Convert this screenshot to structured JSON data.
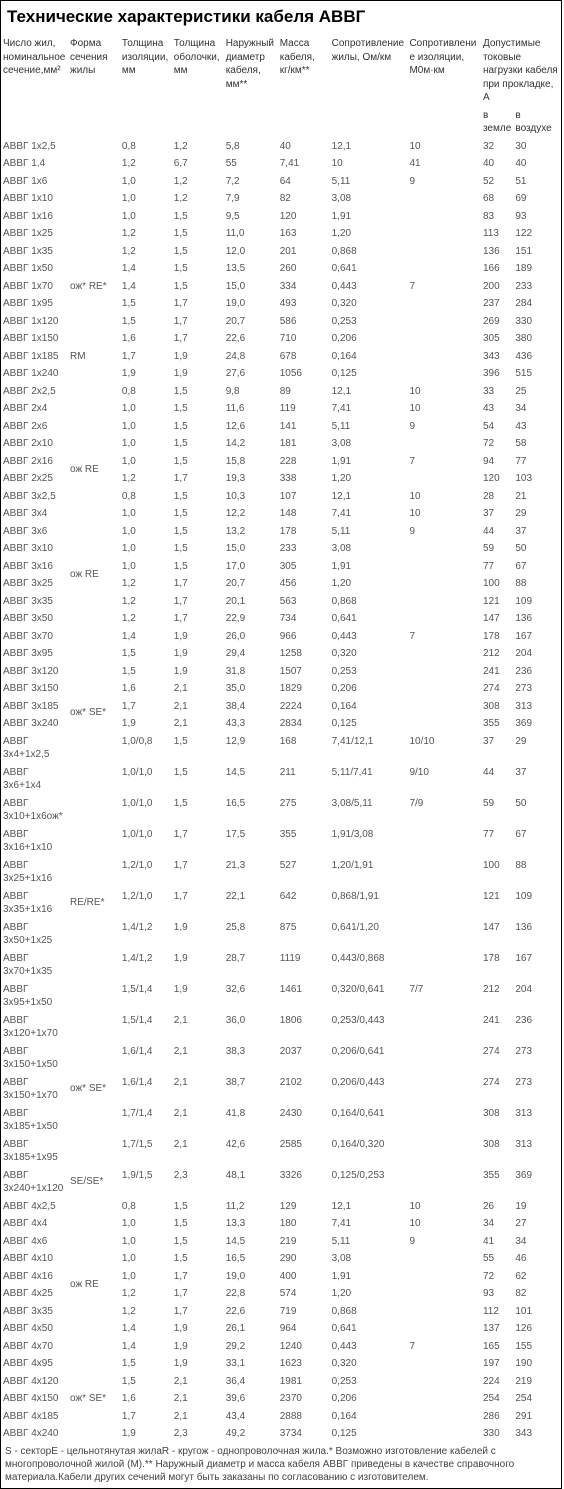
{
  "title": "Технические характеристики кабеля АВВГ",
  "headers": [
    "Число жил, номинальное сечение,мм²",
    "Форма сечения жилы",
    "Толщина изоляции, мм",
    "Толщина оболочки, мм",
    "Наружный диаметр кабеля, мм**",
    "Масса кабеля, кг/км**",
    "Сопротивление жилы, Ом/км",
    "Сопротивление изоляции, М0м·км"
  ],
  "header_load": "Допустимые токовые нагрузки кабеля при прокладке, А",
  "header_sub_ground": "в земле",
  "header_sub_air": "в воздухе",
  "shape_groups": [
    {
      "start": 5,
      "span": 7,
      "label": "ож* RE*"
    },
    {
      "start": 12,
      "span": 1,
      "label": "RM"
    },
    {
      "start": 17,
      "span": 4,
      "label": "ож RE"
    },
    {
      "start": 23,
      "span": 4,
      "label": "ож RE"
    },
    {
      "start": 30,
      "span": 5,
      "label": "ож* SE*"
    },
    {
      "start": 37,
      "span": 5,
      "label": "RE/RE*"
    },
    {
      "start": 43,
      "span": 5,
      "label": "ож* SE*"
    },
    {
      "start": 48,
      "span": 1,
      "label": "SE/SE*"
    },
    {
      "start": 52,
      "span": 4,
      "label": "ож RE"
    },
    {
      "start": 58,
      "span": 5,
      "label": "ож* SE*"
    }
  ],
  "rows": [
    [
      "АВВГ 1х2,5",
      "0,8",
      "1,2",
      "5,8",
      "40",
      "12,1",
      "10",
      "32",
      "30"
    ],
    [
      "АВВГ 1,4",
      "1,2",
      "6,7",
      "55",
      "7,41",
      "10",
      "41",
      "40",
      "40"
    ],
    [
      "АВВГ 1х6",
      "1,0",
      "1,2",
      "7,2",
      "64",
      "5,11",
      "9",
      "52",
      "51"
    ],
    [
      "АВВГ 1х10",
      "1,0",
      "1,2",
      "7,9",
      "82",
      "3,08",
      "",
      "68",
      "69"
    ],
    [
      "АВВГ 1х16",
      "1,0",
      "1,5",
      "9,5",
      "120",
      "1,91",
      "",
      "83",
      "93"
    ],
    [
      "АВВГ 1х25",
      "1,2",
      "1,5",
      "11,0",
      "163",
      "1,20",
      "",
      "113",
      "122"
    ],
    [
      "АВВГ 1х35",
      "1,2",
      "1,5",
      "12,0",
      "201",
      "0,868",
      "",
      "136",
      "151"
    ],
    [
      "АВВГ 1х50",
      "1,4",
      "1,5",
      "13,5",
      "260",
      "0,641",
      "",
      "166",
      "189"
    ],
    [
      "АВВГ 1х70",
      "1,4",
      "1,5",
      "15,0",
      "334",
      "0,443",
      "7",
      "200",
      "233"
    ],
    [
      "АВВГ 1х95",
      "1,5",
      "1,7",
      "19,0",
      "493",
      "0,320",
      "",
      "237",
      "284"
    ],
    [
      "АВВГ 1х120",
      "1,5",
      "1,7",
      "20,7",
      "586",
      "0,253",
      "",
      "269",
      "330"
    ],
    [
      "АВВГ 1х150",
      "1,6",
      "1,7",
      "22,6",
      "710",
      "0,206",
      "",
      "305",
      "380"
    ],
    [
      "АВВГ 1х185",
      "1,7",
      "1,9",
      "24,8",
      "678",
      "0,164",
      "",
      "343",
      "436"
    ],
    [
      "АВВГ 1х240",
      "1,9",
      "1,9",
      "27,6",
      "1056",
      "0,125",
      "",
      "396",
      "515"
    ],
    [
      "АВВГ 2х2,5",
      "0,8",
      "1,5",
      "9,8",
      "89",
      "12,1",
      "10",
      "33",
      "25"
    ],
    [
      "АВВГ 2х4",
      "1,0",
      "1,5",
      "11,6",
      "119",
      "7,41",
      "10",
      "43",
      "34"
    ],
    [
      "АВВГ 2х6",
      "1,0",
      "1,5",
      "12,6",
      "141",
      "5,11",
      "9",
      "54",
      "43"
    ],
    [
      "АВВГ 2х10",
      "1,0",
      "1,5",
      "14,2",
      "181",
      "3,08",
      "",
      "72",
      "58"
    ],
    [
      "АВВГ 2х16",
      "1,0",
      "1,5",
      "15,8",
      "228",
      "1,91",
      "7",
      "94",
      "77"
    ],
    [
      "АВВГ 2х25",
      "1,2",
      "1,7",
      "19,3",
      "338",
      "1,20",
      "",
      "120",
      "103"
    ],
    [
      "АВВГ 3х2,5",
      "0,8",
      "1,5",
      "10,3",
      "107",
      "12,1",
      "10",
      "28",
      "21"
    ],
    [
      "АВВГ 3х4",
      "1,0",
      "1,5",
      "12,2",
      "148",
      "7,41",
      "10",
      "37",
      "29"
    ],
    [
      "АВВГ 3х6",
      "1,0",
      "1,5",
      "13,2",
      "178",
      "5,11",
      "9",
      "44",
      "37"
    ],
    [
      "АВВГ 3х10",
      "1,0",
      "1,5",
      "15,0",
      "233",
      "3,08",
      "",
      "59",
      "50"
    ],
    [
      "АВВГ 3х16",
      "1,0",
      "1,5",
      "17,0",
      "305",
      "1,91",
      "",
      "77",
      "67"
    ],
    [
      "АВВГ 3х25",
      "1,2",
      "1,7",
      "20,7",
      "456",
      "1,20",
      "",
      "100",
      "88"
    ],
    [
      "АВВГ 3х35",
      "1,2",
      "1,7",
      "20,1",
      "563",
      "0,868",
      "",
      "121",
      "109"
    ],
    [
      "АВВГ 3х50",
      "1,2",
      "1,7",
      "22,9",
      "734",
      "0,641",
      "",
      "147",
      "136"
    ],
    [
      "АВВГ 3х70",
      "1,4",
      "1,9",
      "26,0",
      "966",
      "0,443",
      "7",
      "178",
      "167"
    ],
    [
      "АВВГ 3х95",
      "1,5",
      "1,9",
      "29,4",
      "1258",
      "0,320",
      "",
      "212",
      "204"
    ],
    [
      "АВВГ 3х120",
      "1,5",
      "1,9",
      "31,8",
      "1507",
      "0,253",
      "",
      "241",
      "236"
    ],
    [
      "АВВГ 3х150",
      "1,6",
      "2,1",
      "35,0",
      "1829",
      "0,206",
      "",
      "274",
      "273"
    ],
    [
      "АВВГ 3х185",
      "1,7",
      "2,1",
      "38,4",
      "2224",
      "0,164",
      "",
      "308",
      "313"
    ],
    [
      "АВВГ 3х240",
      "1,9",
      "2,1",
      "43,3",
      "2834",
      "0,125",
      "",
      "355",
      "369"
    ],
    [
      "АВВГ 3х4+1х2,5",
      "1,0/0,8",
      "1,5",
      "12,9",
      "168",
      "7,41/12,1",
      "10/10",
      "37",
      "29"
    ],
    [
      "АВВГ 3х6+1х4",
      "1,0/1,0",
      "1,5",
      "14,5",
      "211",
      "5,11/7,41",
      "9/10",
      "44",
      "37"
    ],
    [
      "АВВГ 3х10+1х6ож*",
      "1,0/1,0",
      "1,5",
      "16,5",
      "275",
      "3,08/5,11",
      "7/9",
      "59",
      "50"
    ],
    [
      "АВВГ 3х16+1х10",
      "1,0/1,0",
      "1,7",
      "17,5",
      "355",
      "1,91/3,08",
      "",
      "77",
      "67"
    ],
    [
      "АВВГ 3х25+1х16",
      "1,2/1,0",
      "1,7",
      "21,3",
      "527",
      "1,20/1,91",
      "",
      "100",
      "88"
    ],
    [
      "АВВГ 3х35+1х16",
      "1,2/1,0",
      "1,7",
      "22,1",
      "642",
      "0,868/1,91",
      "",
      "121",
      "109"
    ],
    [
      "АВВГ 3х50+1х25",
      "1,4/1,2",
      "1,9",
      "25,8",
      "875",
      "0,641/1,20",
      "",
      "147",
      "136"
    ],
    [
      "АВВГ 3х70+1х35",
      "1,4/1,2",
      "1,9",
      "28,7",
      "1119",
      "0,443/0,868",
      "",
      "178",
      "167"
    ],
    [
      "АВВГ 3х95+1х50",
      "1,5/1,4",
      "1,9",
      "32,6",
      "1461",
      "0,320/0,641",
      "7/7",
      "212",
      "204"
    ],
    [
      "АВВГ 3х120+1х70",
      "1,5/1,4",
      "2,1",
      "36,0",
      "1806",
      "0,253/0,443",
      "",
      "241",
      "236"
    ],
    [
      "АВВГ 3х150+1х50",
      "1,6/1,4",
      "2,1",
      "38,3",
      "2037",
      "0,206/0,641",
      "",
      "274",
      "273"
    ],
    [
      "АВВГ 3х150+1х70",
      "1,6/1,4",
      "2,1",
      "38,7",
      "2102",
      "0,206/0,443",
      "",
      "274",
      "273"
    ],
    [
      "АВВГ 3х185+1х50",
      "1,7/1,4",
      "2,1",
      "41,8",
      "2430",
      "0,164/0,641",
      "",
      "308",
      "313"
    ],
    [
      "АВВГ 3х185+1х95",
      "1,7/1,5",
      "2,1",
      "42,6",
      "2585",
      "0,164/0,320",
      "",
      "308",
      "313"
    ],
    [
      "АВВГ 3х240+1х120",
      "1,9/1,5",
      "2,3",
      "48,1",
      "3326",
      "0,125/0,253",
      "",
      "355",
      "369"
    ],
    [
      "АВВГ 4х2,5",
      "0,8",
      "1,5",
      "11,2",
      "129",
      "12,1",
      "10",
      "26",
      "19"
    ],
    [
      "АВВГ 4х4",
      "1,0",
      "1,5",
      "13,3",
      "180",
      "7,41",
      "10",
      "34",
      "27"
    ],
    [
      "АВВГ 4х6",
      "1,0",
      "1,5",
      "14,5",
      "219",
      "5,11",
      "9",
      "41",
      "34"
    ],
    [
      "АВВГ 4х10",
      "1,0",
      "1,5",
      "16,5",
      "290",
      "3,08",
      "",
      "55",
      "46"
    ],
    [
      "АВВГ 4х16",
      "1,0",
      "1,7",
      "19,0",
      "400",
      "1,91",
      "",
      "72",
      "62"
    ],
    [
      "АВВГ 4х25",
      "1,2",
      "1,7",
      "22,8",
      "574",
      "1,20",
      "",
      "93",
      "82"
    ],
    [
      "АВВГ 3х35",
      "1,2",
      "1,7",
      "22,6",
      "719",
      "0,868",
      "",
      "112",
      "101"
    ],
    [
      "АВВГ 4х50",
      "1,4",
      "1,9",
      "26,1",
      "964",
      "0,641",
      "",
      "137",
      "126"
    ],
    [
      "АВВГ 4х70",
      "1,4",
      "1,9",
      "29,2",
      "1240",
      "0,443",
      "7",
      "165",
      "155"
    ],
    [
      "АВВГ 4х95",
      "1,5",
      "1,9",
      "33,1",
      "1623",
      "0,320",
      "",
      "197",
      "190"
    ],
    [
      "АВВГ 4х120",
      "1,5",
      "2,1",
      "36,4",
      "1981",
      "0,253",
      "",
      "224",
      "219"
    ],
    [
      "АВВГ 4х150",
      "1,6",
      "2,1",
      "39,6",
      "2370",
      "0,206",
      "",
      "254",
      "254"
    ],
    [
      "АВВГ 4х185",
      "1,7",
      "2,1",
      "43,4",
      "2888",
      "0,164",
      "",
      "286",
      "291"
    ],
    [
      "АВВГ 4х240",
      "1,9",
      "2,3",
      "49,2",
      "3734",
      "0,125",
      "",
      "330",
      "343"
    ]
  ],
  "footnote": "S - секторE - цельнотянутая жилаR - кругож - однопроволочная жила.* Возможно изготовление кабелей с многопроволочной жилой (М).** Наружный диаметр и масса кабеля АВВГ приведены в качестве справочного материала.Кабели других сечений могут быть заказаны по согласованию с изготовителем."
}
